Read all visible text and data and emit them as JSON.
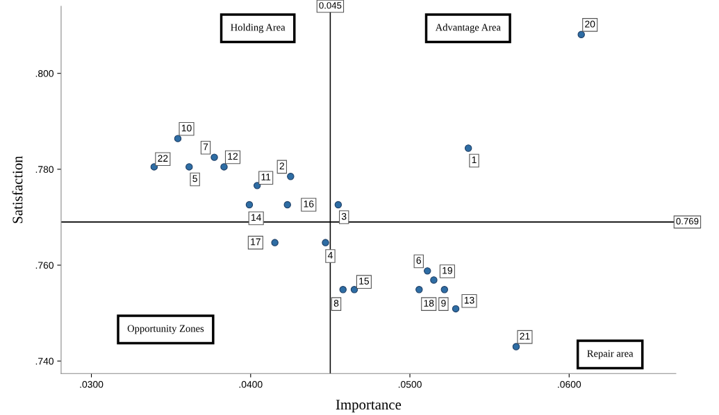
{
  "chart_data": {
    "type": "scatter",
    "xlabel": "Importance",
    "ylabel": "Satisfaction",
    "series": [
      {
        "color": "#2e6da4",
        "x": [
          0.05367,
          0.04251,
          0.0455,
          0.0447,
          0.03614,
          0.0511,
          0.03772,
          0.0458,
          0.05217,
          0.03543,
          0.04041,
          0.03833,
          0.05288,
          0.03992,
          0.04651,
          0.04231,
          0.04152,
          0.05058,
          0.0515,
          0.06076,
          0.05667,
          0.03394
        ],
        "values": [
          0.7844,
          0.7785,
          0.7726,
          0.7647,
          0.7805,
          0.7588,
          0.7825,
          0.7549,
          0.7549,
          0.7864,
          0.7766,
          0.7805,
          0.7509,
          0.7726,
          0.7549,
          0.7726,
          0.7647,
          0.7549,
          0.7569,
          0.8081,
          0.743,
          0.7805
        ]
      }
    ],
    "marker": "circle",
    "grid": false,
    "xlim": [
      0.0281,
      0.0667
    ],
    "ylim": [
      0.7374,
      0.814
    ],
    "xticks": [
      {
        "value": 0.03,
        "label": ".0300"
      },
      {
        "value": 0.04,
        "label": ".0400"
      },
      {
        "value": 0.05,
        "label": ".0500"
      },
      {
        "value": 0.06,
        "label": ".0600"
      }
    ],
    "yticks": [
      {
        "value": 0.74,
        "label": ".740"
      },
      {
        "value": 0.76,
        "label": ".760"
      },
      {
        "value": 0.78,
        "label": ".780"
      },
      {
        "value": 0.8,
        "label": ".800"
      }
    ],
    "ref_lines": [
      {
        "axis": "x",
        "value": 0.045,
        "label": "0.045",
        "color": "#000000"
      },
      {
        "axis": "y",
        "value": 0.769,
        "label": "0.769",
        "color": "#000000"
      }
    ],
    "annotations": [
      {
        "text": "1",
        "x": 0.05367,
        "y": 0.7844
      },
      {
        "text": "2",
        "x": 0.04251,
        "y": 0.7785
      },
      {
        "text": "3",
        "x": 0.0455,
        "y": 0.7726
      },
      {
        "text": "4",
        "x": 0.0447,
        "y": 0.7647
      },
      {
        "text": "5",
        "x": 0.03614,
        "y": 0.7805
      },
      {
        "text": "6",
        "x": 0.0511,
        "y": 0.7588
      },
      {
        "text": "7",
        "x": 0.03772,
        "y": 0.7825
      },
      {
        "text": "8",
        "x": 0.0458,
        "y": 0.7549
      },
      {
        "text": "9",
        "x": 0.05217,
        "y": 0.7549
      },
      {
        "text": "10",
        "x": 0.03543,
        "y": 0.7864
      },
      {
        "text": "11",
        "x": 0.04041,
        "y": 0.7766
      },
      {
        "text": "12",
        "x": 0.03833,
        "y": 0.7805
      },
      {
        "text": "13",
        "x": 0.05288,
        "y": 0.7509
      },
      {
        "text": "14",
        "x": 0.03992,
        "y": 0.7726
      },
      {
        "text": "15",
        "x": 0.04651,
        "y": 0.7549
      },
      {
        "text": "16",
        "x": 0.04231,
        "y": 0.7726
      },
      {
        "text": "17",
        "x": 0.04152,
        "y": 0.7647
      },
      {
        "text": "18",
        "x": 0.05058,
        "y": 0.7549
      },
      {
        "text": "19",
        "x": 0.0515,
        "y": 0.7569
      },
      {
        "text": "20",
        "x": 0.06076,
        "y": 0.8081
      },
      {
        "text": "21",
        "x": 0.05667,
        "y": 0.743
      },
      {
        "text": "22",
        "x": 0.03394,
        "y": 0.7805
      },
      "Holding Area",
      "Advantage Area",
      "Opportunity Zones",
      "Repair area"
    ]
  }
}
